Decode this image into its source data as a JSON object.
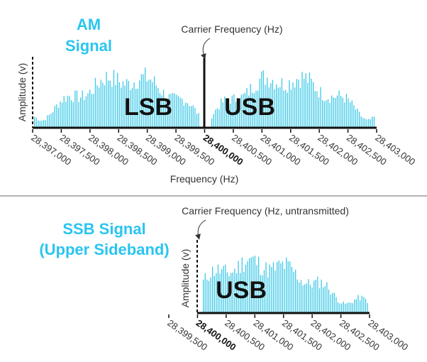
{
  "colors": {
    "bars": "#3ec9e6",
    "title": "#29c5f0",
    "axis": "#111111",
    "divider": "#9a9a9a"
  },
  "am": {
    "title_line1": "AM",
    "title_line2": "Signal",
    "carrier_label": "Carrier Frequency (Hz)",
    "ylabel": "Amplitude (v)",
    "xlabel": "Frequency (Hz)",
    "lsb_label": "LSB",
    "usb_label": "USB",
    "ticks": [
      "28,397,000",
      "28,397,500",
      "28,398,000",
      "28,398,500",
      "28,399,000",
      "28,399,500",
      "28,400,000",
      "28,400,500",
      "28,401,000",
      "28,401,500",
      "28,402,000",
      "28,402,500",
      "28,403,000"
    ]
  },
  "ssb": {
    "title_line1": "SSB Signal",
    "title_line2": "(Upper Sideband)",
    "carrier_label": "Carrier Frequency (Hz, untransmitted)",
    "ylabel": "Amplitude (v)",
    "usb_label": "USB",
    "ticks": [
      "28,399,500",
      "28,400,000",
      "28,400,500",
      "28,401,000",
      "28,401,500",
      "28,402,000",
      "28,402,500",
      "28,403,000"
    ]
  }
}
